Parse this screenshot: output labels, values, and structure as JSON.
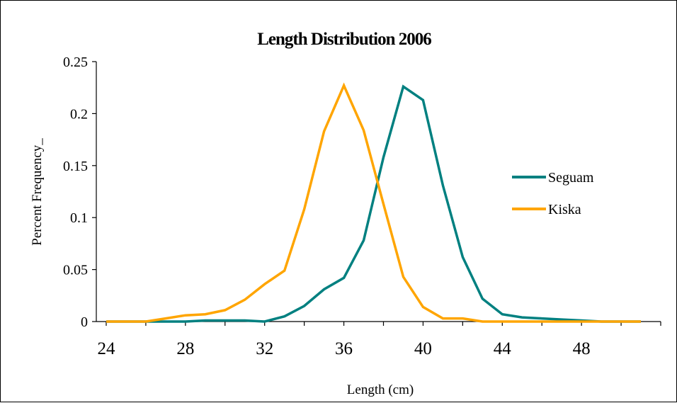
{
  "chart_data": {
    "type": "line",
    "title": "Length Distribution 2006",
    "xlabel": "Length (cm)",
    "ylabel": "Percent Frequency_",
    "xlim": [
      23.5,
      52
    ],
    "ylim": [
      0,
      0.25
    ],
    "xticks": [
      24,
      28,
      32,
      36,
      40,
      44,
      48
    ],
    "xtick_labels": [
      "24",
      "28",
      "32",
      "36",
      "40",
      "44",
      "48"
    ],
    "yticks": [
      0,
      0.05,
      0.1,
      0.15,
      0.2,
      0.25
    ],
    "ytick_labels": [
      "0",
      "0.05",
      "0.1",
      "0.15",
      "0.2",
      "0.25"
    ],
    "grid": false,
    "legend_position": "right",
    "series": [
      {
        "name": "Seguam",
        "color": "#008080",
        "x": [
          24,
          25,
          26,
          27,
          28,
          29,
          30,
          31,
          32,
          33,
          34,
          35,
          36,
          37,
          38,
          39,
          40,
          41,
          42,
          43,
          44,
          45,
          46,
          47,
          48,
          49,
          50,
          51
        ],
        "y": [
          0,
          0,
          0,
          0,
          0,
          0.001,
          0.001,
          0.001,
          0,
          0.005,
          0.015,
          0.031,
          0.042,
          0.078,
          0.158,
          0.226,
          0.213,
          0.131,
          0.062,
          0.022,
          0.007,
          0.004,
          0.003,
          0.002,
          0.001,
          0,
          0,
          0
        ]
      },
      {
        "name": "Kiska",
        "color": "#FFA500",
        "x": [
          24,
          25,
          26,
          27,
          28,
          29,
          30,
          31,
          32,
          33,
          34,
          35,
          36,
          37,
          38,
          39,
          40,
          41,
          42,
          43,
          44,
          45,
          46,
          47,
          48,
          49,
          50,
          51
        ],
        "y": [
          0,
          0,
          0,
          0.003,
          0.006,
          0.007,
          0.011,
          0.021,
          0.036,
          0.049,
          0.108,
          0.183,
          0.227,
          0.184,
          0.113,
          0.043,
          0.014,
          0.003,
          0.003,
          0,
          0,
          0,
          0,
          0,
          0,
          0,
          0,
          0
        ]
      }
    ]
  }
}
